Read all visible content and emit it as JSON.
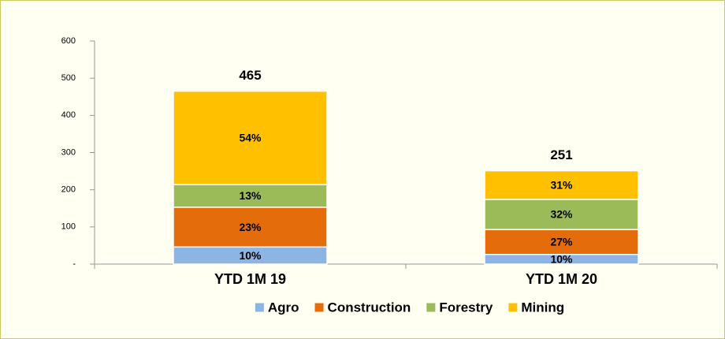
{
  "chart_data": {
    "type": "stacked_bar",
    "categories": [
      "YTD 1M 19",
      "YTD 1M 20"
    ],
    "series": [
      {
        "name": "Agro",
        "color": "#8eb4e3",
        "values": [
          46,
          26
        ],
        "share_labels": [
          "10%",
          "10%"
        ]
      },
      {
        "name": "Construction",
        "color": "#e46c0a",
        "values": [
          107,
          67
        ],
        "share_labels": [
          "23%",
          "27%"
        ]
      },
      {
        "name": "Forestry",
        "color": "#9bbb59",
        "values": [
          61,
          81
        ],
        "share_labels": [
          "13%",
          "32%"
        ]
      },
      {
        "name": "Mining",
        "color": "#ffc000",
        "values": [
          251,
          77
        ],
        "share_labels": [
          "54%",
          "31%"
        ]
      }
    ],
    "totals": [
      465,
      251
    ],
    "ylim": [
      0,
      600
    ],
    "yticks": [
      {
        "value": 0,
        "label": "-"
      },
      100,
      200,
      300,
      400,
      500,
      600
    ],
    "legend": "bottom"
  }
}
